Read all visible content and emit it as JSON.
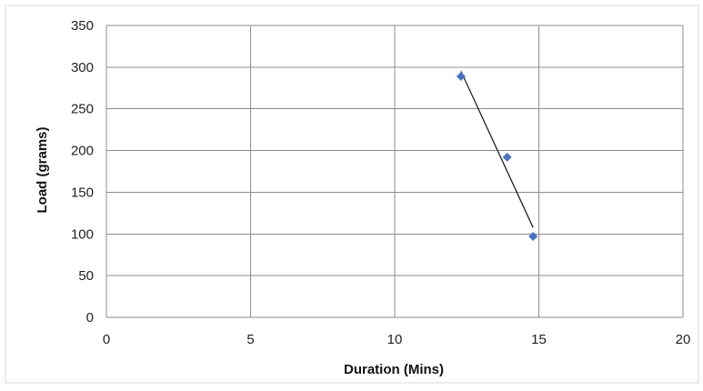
{
  "chart_data": {
    "type": "scatter",
    "title": "",
    "xlabel": "Duration (Mins)",
    "ylabel": "Load (grams)",
    "xlim": [
      0,
      20
    ],
    "ylim": [
      0,
      350
    ],
    "x_ticks": [
      0,
      5,
      10,
      15,
      20
    ],
    "y_ticks": [
      0,
      50,
      100,
      150,
      200,
      250,
      300,
      350
    ],
    "grid": true,
    "legend": "none",
    "series": [
      {
        "points": [
          {
            "x": 12.3,
            "y": 289
          },
          {
            "x": 13.9,
            "y": 192
          },
          {
            "x": 14.8,
            "y": 97
          }
        ],
        "marker": "diamond",
        "color": "#4a72c0"
      }
    ],
    "trendline": {
      "type": "linear",
      "color": "#222222",
      "x_range": [
        12.3,
        14.8
      ]
    }
  }
}
